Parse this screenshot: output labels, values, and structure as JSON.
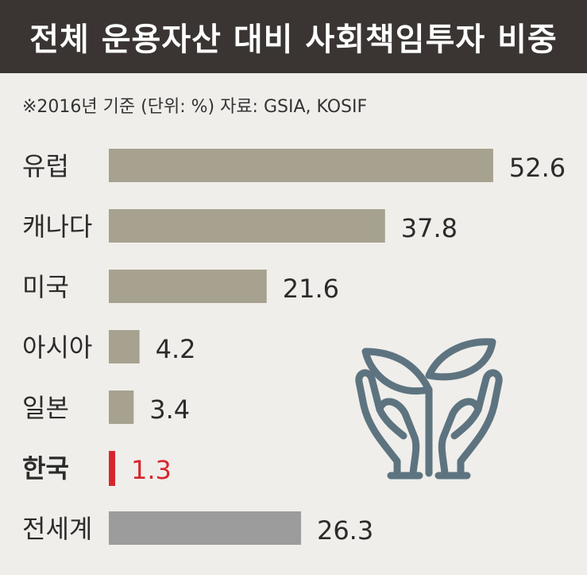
{
  "title": "전체 운용자산 대비 사회책임투자 비중",
  "subtitle": "※2016년 기준  (단위: %)  자료: GSIA, KOSIF",
  "chart_data": {
    "type": "bar",
    "orientation": "horizontal",
    "categories": [
      "유럽",
      "캐나다",
      "미국",
      "아시아",
      "일본",
      "한국",
      "전세계"
    ],
    "values": [
      52.6,
      37.8,
      21.6,
      4.2,
      3.4,
      1.3,
      26.3
    ],
    "value_labels": [
      "52.6",
      "37.8",
      "21.6",
      "4.2",
      "3.4",
      "1.3",
      "26.3"
    ],
    "highlight": "한국",
    "colors": {
      "default": "#a6a28f",
      "highlight": "#d7262e",
      "total": "#9c9c9c"
    }
  },
  "icon": "plant-in-hands-icon"
}
